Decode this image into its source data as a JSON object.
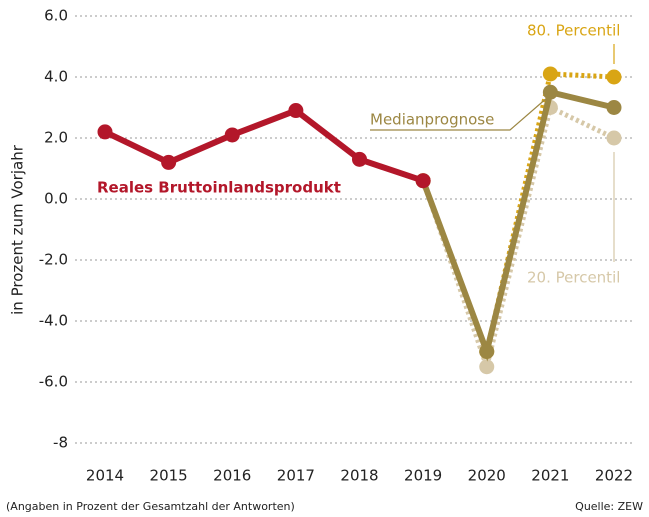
{
  "chart_data": {
    "type": "line",
    "y_label": "in Prozent zum Vorjahr",
    "categories": [
      "2014",
      "2015",
      "2016",
      "2017",
      "2018",
      "2019",
      "2020",
      "2021",
      "2022"
    ],
    "series": [
      {
        "name": "20. Percentil",
        "color": "#d6c8a8",
        "linestyle": "dotted",
        "values": [
          null,
          null,
          null,
          null,
          null,
          0.6,
          -5.5,
          3.0,
          2.0
        ]
      },
      {
        "name": "80. Percentil",
        "color": "#d9a514",
        "linestyle": "dotted",
        "values": [
          null,
          null,
          null,
          null,
          null,
          0.6,
          -5.0,
          4.1,
          4.0
        ]
      },
      {
        "name": "Medianprognose",
        "color": "#9c8743",
        "linestyle": "solid",
        "values": [
          null,
          null,
          null,
          null,
          null,
          0.6,
          -5.0,
          3.5,
          3.0
        ]
      },
      {
        "name": "Reales Bruttoinlandsprodukt",
        "color": "#b3172a",
        "linestyle": "solid",
        "values": [
          2.2,
          1.2,
          2.1,
          2.9,
          1.3,
          0.6,
          null,
          null,
          null
        ]
      }
    ],
    "ylim": [
      -8,
      6
    ],
    "yticks": [
      {
        "value": 6,
        "label": "6.0"
      },
      {
        "value": 4,
        "label": "4.0"
      },
      {
        "value": 2,
        "label": "2.0"
      },
      {
        "value": 0,
        "label": "0.0"
      },
      {
        "value": -2,
        "label": "-2.0"
      },
      {
        "value": -4,
        "label": "-4.0"
      },
      {
        "value": -6,
        "label": "-6.0"
      },
      -8
    ],
    "grid": true,
    "note": "(Angaben in Prozent der Gesamtzahl der Antworten)",
    "source": "Quelle: ZEW"
  }
}
